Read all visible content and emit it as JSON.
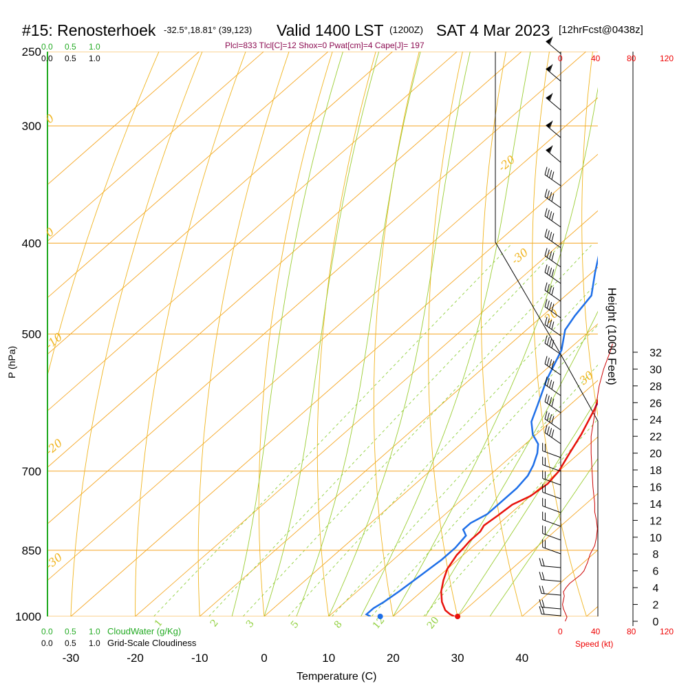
{
  "header": {
    "station": "#15: Renosterhoek",
    "coords": "-32.5°,18.81° (39,123)",
    "valid": "Valid 1400 LST",
    "zulu": "(1200Z)",
    "date": "SAT 4 Mar 2023",
    "forecast": "[12hrFcst@0438z]",
    "params": "Plcl=833 Tlcl[C]=12 Shox=0 Pwat[cm]=4 Cape[J]= 197"
  },
  "scales": {
    "cloudwater_top": [
      "0.0",
      "0.5",
      "1.0"
    ],
    "cloudiness_top": [
      "0.0",
      "0.5",
      "1.0"
    ],
    "cloudwater_bottom": [
      "0.0",
      "0.5",
      "1.0"
    ],
    "cloudwater_label": "CloudWater (g/Kg)",
    "cloudiness_bottom": [
      "0.0",
      "0.5",
      "1.0"
    ],
    "cloudiness_label": "Grid-Scale Cloudiness",
    "speed_top": [
      "0",
      "40",
      "80",
      "120"
    ],
    "speed_bottom": [
      "0",
      "40",
      "80",
      "120"
    ],
    "speed_label": "Speed (kt)"
  },
  "colors": {
    "isobar": "#f5a623",
    "dry_adiabat": "#f0b41e",
    "moist_adiabat": "#9acd32",
    "mixing_ratio": "#8fcf3c",
    "temperature": "#e8120c",
    "dewpoint": "#1e6fe8",
    "parcel": "#8b0a50",
    "cloud": "#22aa22",
    "wind_speed": "#cc0000"
  },
  "chart_data": {
    "type": "line",
    "title": "#15: Renosterhoek Valid 1400 LST (1200Z) SAT 4 Mar 2023",
    "xlabel": "Temperature (C)",
    "ylabel": "P (hPa)",
    "y2label": "Height (1000 Feet)",
    "xlim": [
      -35,
      45
    ],
    "ylim": [
      1000,
      250
    ],
    "pressure_ticks": [
      1000,
      850,
      700,
      500,
      400,
      300,
      250
    ],
    "pressure_tick_labels": [
      "1000",
      "850",
      "700",
      "500",
      "400",
      "300",
      "250"
    ],
    "temp_ticks": [
      -30,
      -20,
      -10,
      0,
      10,
      20,
      30,
      40
    ],
    "temp_tick_labels": [
      "-30",
      "-20",
      "-10",
      "0",
      "10",
      "20",
      "30",
      "40"
    ],
    "height_ticks": [
      "0",
      "2",
      "4",
      "6",
      "8",
      "10",
      "12",
      "14",
      "16",
      "18",
      "20",
      "22",
      "24",
      "26",
      "28",
      "30",
      "32"
    ],
    "dry_adiabat_labels": [
      "-30",
      "-20",
      "-10",
      "0",
      "10",
      "20",
      "30",
      "10",
      "0",
      "10",
      "20",
      "30"
    ],
    "mixing_ratio_labels": [
      "1",
      "2",
      "3",
      "5",
      "8",
      "12",
      "20"
    ],
    "series": [
      {
        "name": "Temperature",
        "points": [
          [
            29.5,
            1000
          ],
          [
            28.5,
            995
          ],
          [
            27,
            985
          ],
          [
            25,
            965
          ],
          [
            23,
            940
          ],
          [
            21.4,
            915
          ],
          [
            20,
            890
          ],
          [
            19,
            860
          ],
          [
            18.8,
            845
          ],
          [
            18.5,
            830
          ],
          [
            18.5,
            812
          ],
          [
            18,
            800
          ],
          [
            18.4,
            780
          ],
          [
            18.7,
            760
          ],
          [
            20,
            744
          ],
          [
            20.5,
            722
          ],
          [
            20,
            700
          ],
          [
            18.5,
            670
          ],
          [
            17,
            640
          ],
          [
            14.5,
            600
          ],
          [
            12.5,
            575
          ],
          [
            10,
            545
          ],
          [
            8,
            520
          ],
          [
            6.5,
            500
          ],
          [
            5.5,
            480
          ],
          [
            4.5,
            450
          ],
          [
            3.5,
            420
          ],
          [
            2,
            400
          ],
          [
            -1,
            370
          ],
          [
            -4,
            345
          ],
          [
            -6.5,
            327
          ],
          [
            -9,
            306
          ],
          [
            -11,
            290
          ],
          [
            -13,
            274
          ],
          [
            -15,
            258
          ]
        ]
      },
      {
        "name": "Dewpoint",
        "points": [
          [
            16.5,
            1000
          ],
          [
            15.5,
            995
          ],
          [
            15.5,
            980
          ],
          [
            16,
            965
          ],
          [
            16.5,
            940
          ],
          [
            17,
            905
          ],
          [
            17.5,
            870
          ],
          [
            17.5,
            845
          ],
          [
            17,
            820
          ],
          [
            15.5,
            808
          ],
          [
            15.5,
            795
          ],
          [
            16.5,
            778
          ],
          [
            16.5,
            755
          ],
          [
            16.5,
            730
          ],
          [
            16,
            708
          ],
          [
            15,
            690
          ],
          [
            13.5,
            670
          ],
          [
            12,
            655
          ],
          [
            9.5,
            640
          ],
          [
            7,
            620
          ],
          [
            5,
            595
          ],
          [
            2,
            560
          ],
          [
            -1,
            520
          ],
          [
            -4,
            495
          ],
          [
            -5,
            478
          ],
          [
            -6,
            455
          ],
          [
            -9.5,
            430
          ],
          [
            -13,
            405
          ],
          [
            -15,
            393
          ],
          [
            -16,
            378
          ],
          [
            -16,
            350
          ],
          [
            -17.5,
            345
          ],
          [
            -20,
            325
          ],
          [
            -22.5,
            305
          ],
          [
            -25,
            287
          ],
          [
            -29,
            275
          ],
          [
            -32,
            262
          ]
        ]
      },
      {
        "name": "Parcel",
        "points": [
          [
            14.5,
            600
          ],
          [
            12.5,
            570
          ],
          [
            10.5,
            540
          ],
          [
            9,
            520
          ],
          [
            7.5,
            500
          ],
          [
            5.5,
            480
          ],
          [
            3.5,
            450
          ],
          [
            1.5,
            420
          ],
          [
            -1,
            395
          ],
          [
            -3.5,
            370
          ],
          [
            -5,
            357
          ]
        ]
      }
    ],
    "surface_points": [
      {
        "name": "Surface Temperature",
        "x": 30,
        "y": 1000
      },
      {
        "name": "Surface Dewpoint",
        "x": 18,
        "y": 1000
      }
    ],
    "wind_speed_profile": {
      "name": "Wind Speed",
      "height_kft": [
        0,
        0.5,
        1,
        1.5,
        2,
        2.5,
        3,
        3.5,
        4,
        4.5,
        5,
        5.5,
        6,
        7,
        8,
        9,
        10,
        11,
        12,
        13,
        14,
        16,
        18,
        20,
        22,
        24,
        26,
        28,
        30,
        32,
        33
      ],
      "speed_kt": [
        5,
        7,
        5,
        3,
        2,
        3,
        4,
        3,
        6,
        10,
        16,
        22,
        26,
        30,
        33,
        38,
        40,
        41,
        40,
        38,
        38,
        36,
        35,
        34,
        34,
        37,
        40,
        43,
        48,
        55,
        58
      ]
    }
  }
}
